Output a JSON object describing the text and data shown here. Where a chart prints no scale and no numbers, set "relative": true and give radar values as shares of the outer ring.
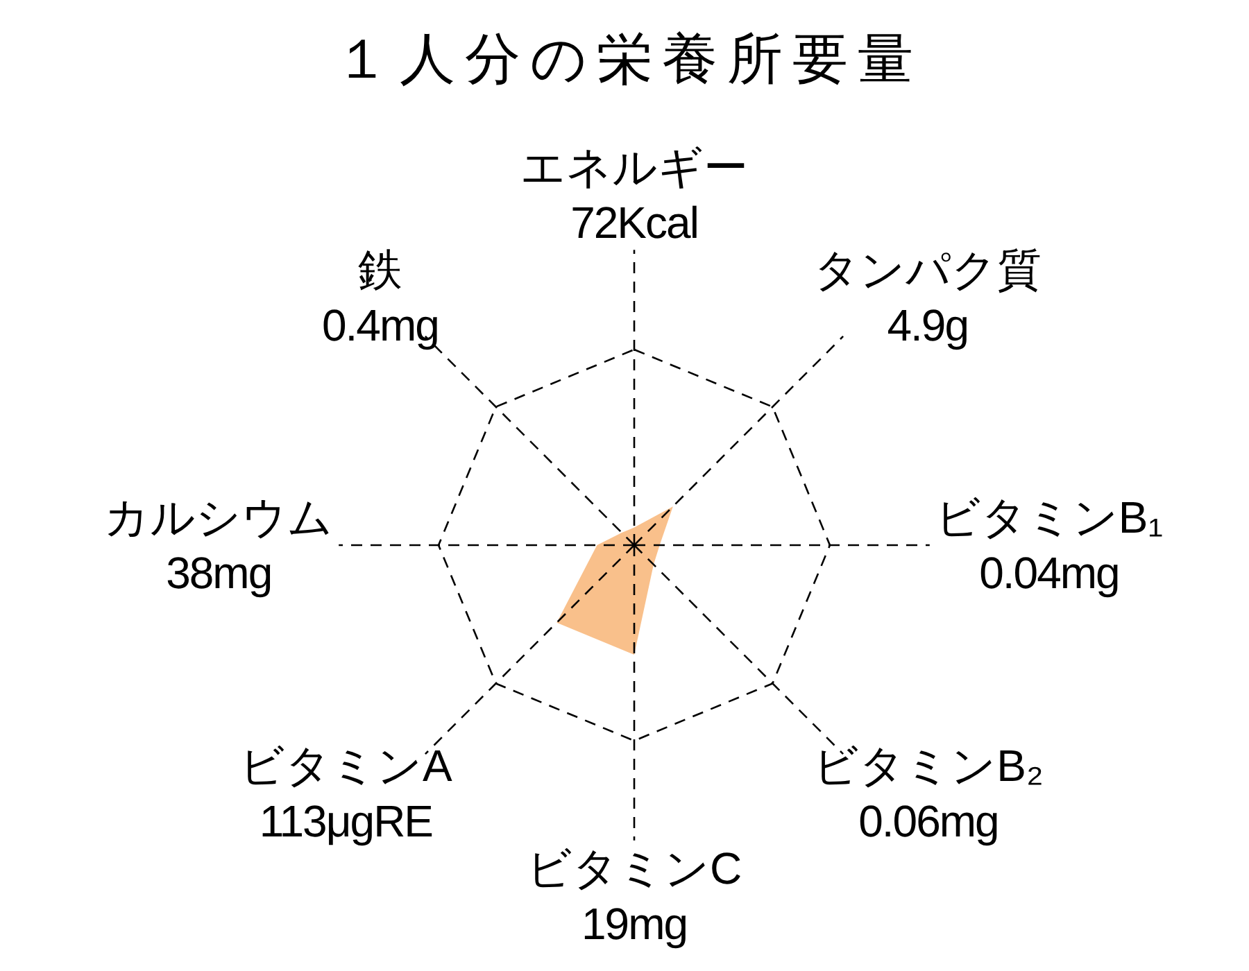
{
  "chart_data": {
    "type": "radar",
    "title": "１人分の栄養所要量",
    "categories": [
      "エネルギー\n72Kcal",
      "タンパク質\n4.9g",
      "ビタミンB₁\n0.04mg",
      "ビタミンB₂\n0.06mg",
      "ビタミンC\n19mg",
      "ビタミンA\n113μgRE",
      "カルシウム\n38mg",
      "鉄\n0.4mg"
    ],
    "relative": true,
    "grid": true,
    "series": [
      {
        "color": "#f9c08b",
        "values": [
          0.09,
          0.28,
          0.13,
          0.14,
          0.56,
          0.56,
          0.19,
          0.09
        ]
      }
    ]
  }
}
